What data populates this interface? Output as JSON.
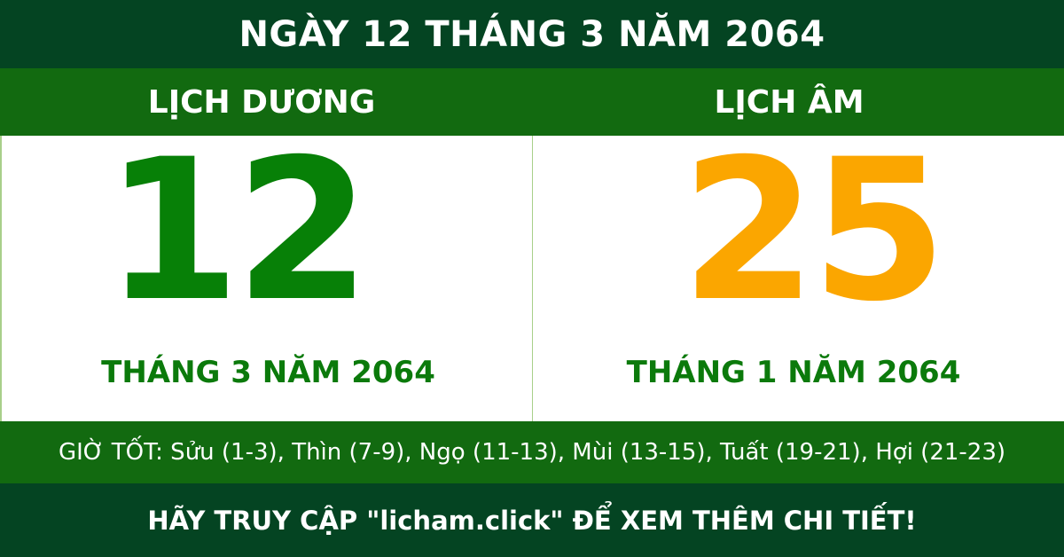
{
  "title": "NGÀY 12 THÁNG 3 NĂM 2064",
  "solar": {
    "label": "LỊCH DƯƠNG",
    "day": "12",
    "month_year": "THÁNG 3 NĂM 2064"
  },
  "lunar": {
    "label": "LỊCH ÂM",
    "day": "25",
    "month_year": "THÁNG 1 NĂM 2064"
  },
  "good_hours": "GIỜ TỐT: Sửu (1-3), Thìn (7-9), Ngọ (11-13), Mùi (13-15), Tuất (19-21), Hợi (21-23)",
  "footer": "HÃY TRUY CẬP \"licham.click\" ĐỂ XEM THÊM CHI TIẾT!",
  "colors": {
    "dark_green": "#044422",
    "band_green": "#126a10",
    "solar_number": "#078007",
    "lunar_number": "#fba600"
  }
}
